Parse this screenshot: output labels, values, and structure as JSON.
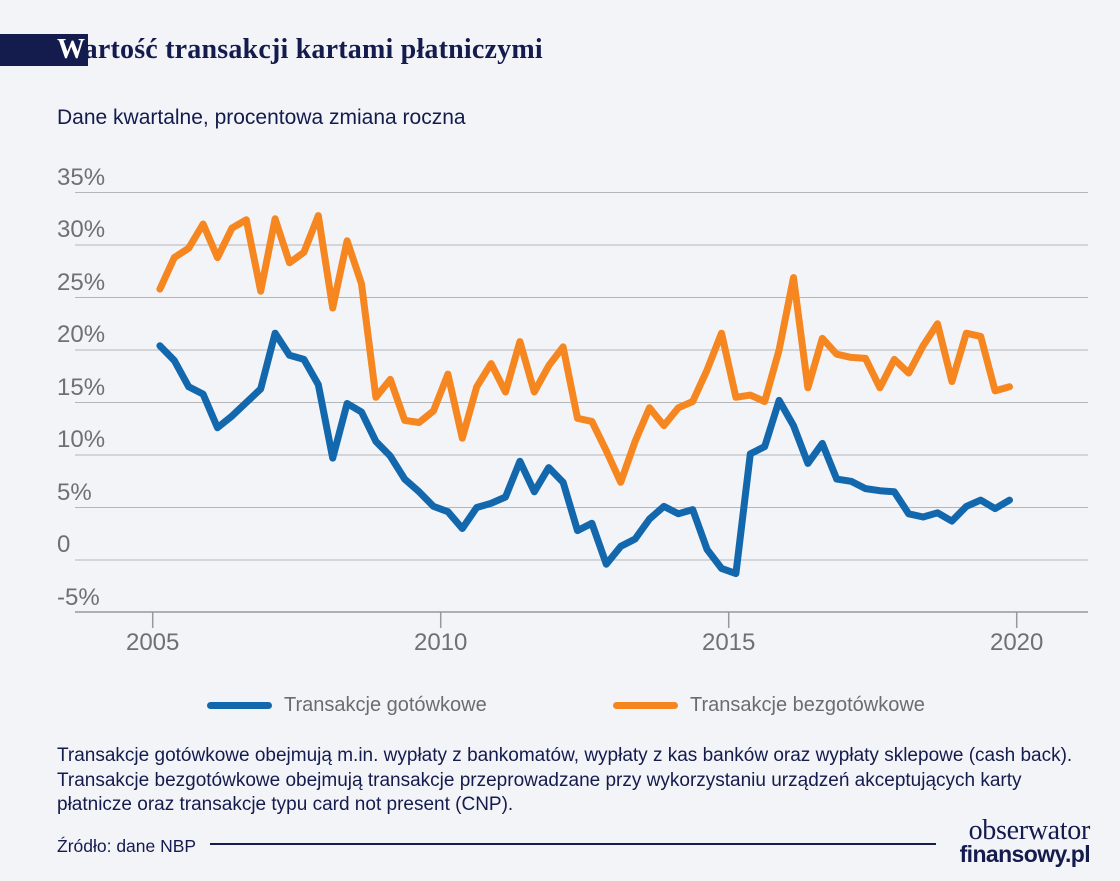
{
  "header": {
    "title": "Wartość transakcji kartami płatniczymi",
    "title_first_letter": "W",
    "title_rest": "artość transakcji kartami płatniczymi",
    "subtitle": "Dane kwartalne, procentowa zmiana roczna"
  },
  "colors": {
    "background": "#f3f4f8",
    "navy": "#141b4d",
    "blue": "#1368ad",
    "orange": "#f6861f",
    "label_gray": "#6f7072",
    "grid_gray": "#b5b6b8",
    "axis_gray": "#97989a"
  },
  "chart_data": {
    "type": "line",
    "title": "Wartość transakcji kartami płatniczymi",
    "subtitle": "Dane kwartalne, procentowa zmiana roczna",
    "frequency": "quarterly",
    "x_start_year": 2005,
    "x_tick_years": [
      2005,
      2010,
      2015,
      2020
    ],
    "x_tick_labels": [
      "2005",
      "2010",
      "2015",
      "2020"
    ],
    "y_tick_values": [
      35,
      30,
      25,
      20,
      15,
      10,
      5,
      0,
      -5
    ],
    "y_tick_labels": [
      "35%",
      "30%",
      "25%",
      "20%",
      "15%",
      "10%",
      "5%",
      "0",
      "-5%"
    ],
    "ylim": [
      -5,
      35
    ],
    "xlim": [
      2005,
      2020
    ],
    "grid": true,
    "legend_position": "bottom",
    "units": "percent year-over-year change",
    "series": [
      {
        "name": "Transakcje gotówkowe",
        "color": "#1368ad",
        "values": [
          20.4,
          19.0,
          16.5,
          15.8,
          12.6,
          13.7,
          15.0,
          16.3,
          21.6,
          19.5,
          19.1,
          16.7,
          9.7,
          14.9,
          14.1,
          11.3,
          9.9,
          7.7,
          6.5,
          5.1,
          4.6,
          3.0,
          5.0,
          5.4,
          6.0,
          9.4,
          6.5,
          8.8,
          7.4,
          2.8,
          3.5,
          -0.4,
          1.3,
          2.0,
          3.9,
          5.1,
          4.4,
          4.8,
          1.0,
          -0.8,
          -1.3,
          10.1,
          10.8,
          15.2,
          12.8,
          9.2,
          11.1,
          7.7,
          7.5,
          6.8,
          6.6,
          6.5,
          4.4,
          4.1,
          4.5,
          3.7,
          5.1,
          5.7,
          4.9,
          5.7
        ]
      },
      {
        "name": "Transakcje bezgotówkowe",
        "color": "#f6861f",
        "values": [
          25.8,
          28.8,
          29.7,
          32.0,
          28.8,
          31.6,
          32.4,
          25.6,
          32.5,
          28.3,
          29.3,
          32.8,
          24.0,
          30.4,
          26.3,
          15.5,
          17.2,
          13.3,
          13.1,
          14.2,
          17.7,
          11.6,
          16.5,
          18.7,
          16.0,
          20.8,
          16.0,
          18.5,
          20.3,
          13.5,
          13.2,
          10.4,
          7.4,
          11.3,
          14.5,
          12.8,
          14.5,
          15.1,
          18.1,
          21.6,
          15.5,
          15.7,
          15.1,
          20.0,
          26.9,
          16.4,
          21.1,
          19.6,
          19.3,
          19.2,
          16.4,
          19.1,
          17.8,
          20.4,
          22.5,
          17.0,
          21.6,
          21.3,
          16.1,
          16.5
        ]
      }
    ]
  },
  "legend": {
    "items": [
      {
        "label": "Transakcje gotówkowe",
        "color": "#1368ad"
      },
      {
        "label": "Transakcje bezgotówkowe",
        "color": "#f6861f"
      }
    ]
  },
  "footnote": {
    "lines": [
      "Transakcje gotówkowe obejmują m.in. wypłaty z bankomatów, wypłaty z kas banków oraz wypłaty sklepowe (cash back).",
      "Transakcje bezgotówkowe obejmują transakcje przeprowadzane przy wykorzystaniu urządzeń akceptujących karty",
      "płatnicze oraz transakcje typu card not present (CNP)."
    ]
  },
  "source": {
    "label": "Źródło: dane NBP"
  },
  "logo": {
    "line1": "obserwator",
    "line2": "finansowy.pl"
  }
}
